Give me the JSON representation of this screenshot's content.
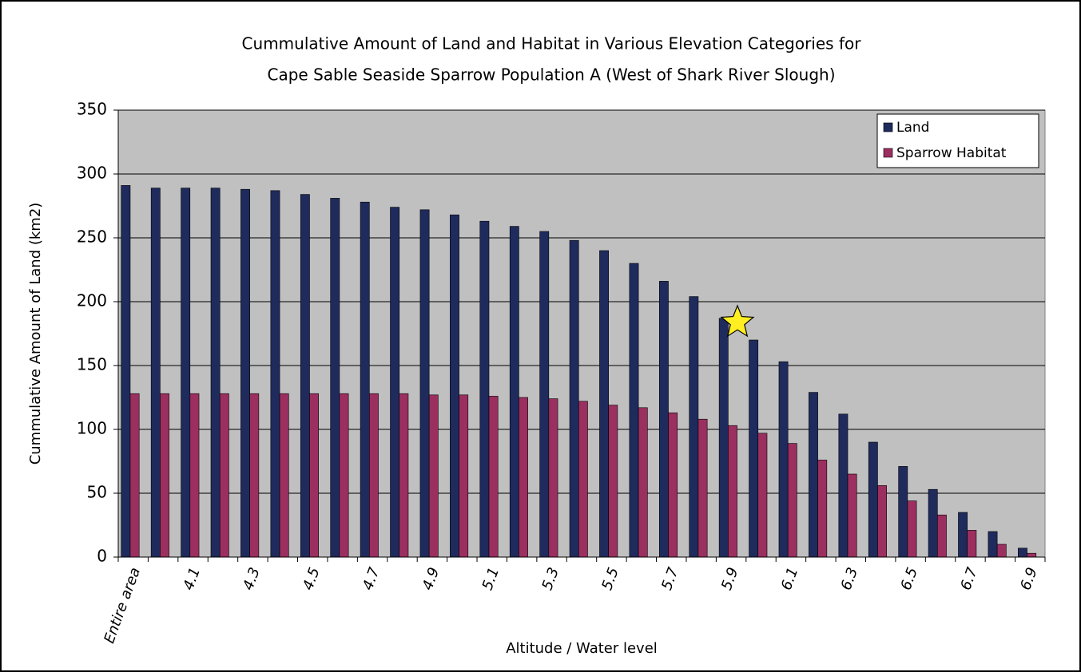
{
  "chart_data": {
    "type": "bar",
    "title": [
      "Cummulative Amount of Land and Habitat in Various Elevation Categories for",
      "Cape Sable Seaside Sparrow Population A (West of Shark River Slough)"
    ],
    "x_label": "Altitude / Water level",
    "y_label": "Cummulative Amount of Land (km2)",
    "categories": [
      "Entire area",
      null,
      "4.1",
      null,
      "4.3",
      null,
      "4.5",
      null,
      "4.7",
      null,
      "4.9",
      null,
      "5.1",
      null,
      "5.3",
      null,
      "5.5",
      null,
      "5.7",
      null,
      "5.9",
      null,
      "6.1",
      null,
      "6.3",
      null,
      "6.5",
      null,
      "6.7",
      null,
      "6.9"
    ],
    "series": [
      {
        "name": "Land",
        "color": "#1f2b5c",
        "values": [
          291,
          289,
          289,
          289,
          288,
          287,
          284,
          281,
          278,
          274,
          272,
          268,
          263,
          259,
          255,
          248,
          240,
          230,
          216,
          204,
          187,
          170,
          153,
          129,
          112,
          90,
          71,
          53,
          35,
          20,
          7
        ]
      },
      {
        "name": "Sparrow Habitat",
        "color": "#9b2f5f",
        "values": [
          128,
          128,
          128,
          128,
          128,
          128,
          128,
          128,
          128,
          128,
          127,
          127,
          126,
          125,
          124,
          122,
          119,
          117,
          113,
          108,
          103,
          97,
          89,
          76,
          65,
          56,
          44,
          33,
          21,
          10,
          3
        ]
      }
    ],
    "ylim": [
      0,
      350
    ],
    "yticks": [
      0,
      50,
      100,
      150,
      200,
      250,
      300,
      350
    ],
    "grid": true,
    "legend": "upper right"
  }
}
